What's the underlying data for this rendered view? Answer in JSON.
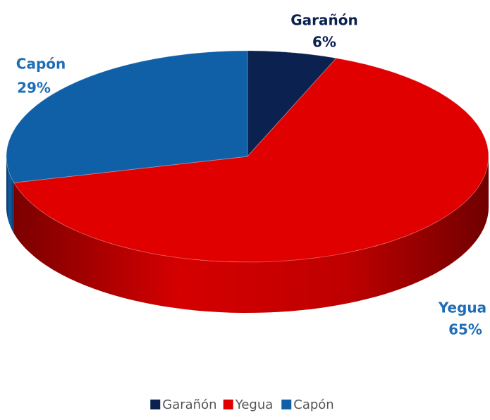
{
  "chart_data": {
    "type": "pie",
    "categories": [
      "Garañón",
      "Yegua",
      "Capón"
    ],
    "values": [
      6,
      65,
      29
    ],
    "value_labels": [
      "6%",
      "65%",
      "29%"
    ],
    "colors": [
      "#0b2150",
      "#e00000",
      "#1060a8"
    ],
    "legend": "bottom"
  }
}
